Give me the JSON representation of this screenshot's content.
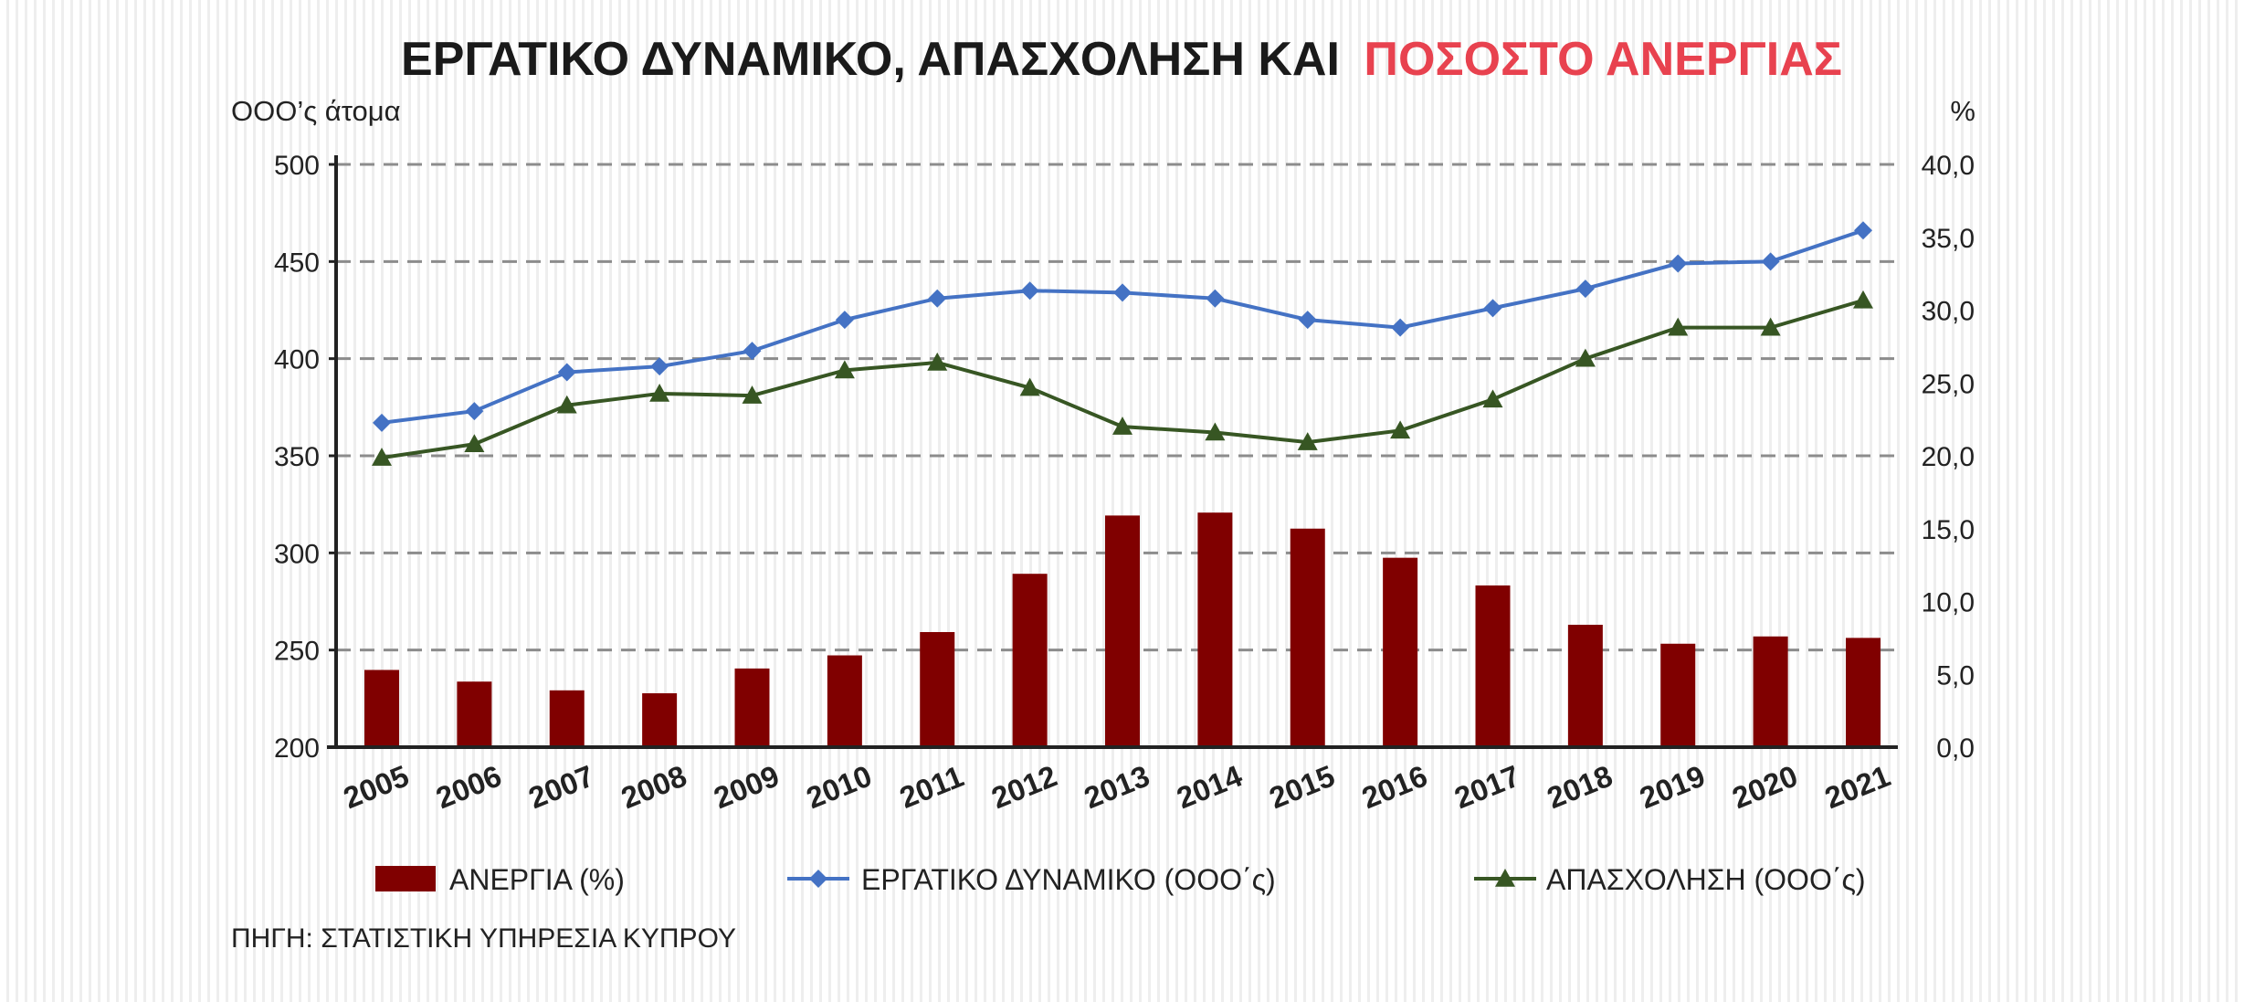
{
  "title": {
    "part1": "ΕΡΓΑΤΙΚΟ ΔΥΝΑΜΙΚΟ, ΑΠΑΣΧΟΛΗΣΗ ΚΑΙ",
    "part2": "ΠΟΣΟΣΤΟ ΑΝΕΡΓΙΑΣ",
    "part1_color": "#1a1a1a",
    "part2_color": "#e8424f"
  },
  "left_axis_unit": "ΟΟΟ’ς άτομα",
  "right_axis_unit": "%",
  "source": "ΠΗΓΗ: ΣΤΑΤΙΣΤΙΚΗ ΥΠΗΡΕΣΙΑ ΚΥΠΡΟΥ",
  "chart_data": {
    "type": "bar",
    "categories": [
      "2005",
      "2006",
      "2007",
      "2008",
      "2009",
      "2010",
      "2011",
      "2012",
      "2013",
      "2014",
      "2015",
      "2016",
      "2017",
      "2018",
      "2019",
      "2020",
      "2021"
    ],
    "y_left": {
      "min": 200,
      "max": 500,
      "ticks": [
        "500",
        "450",
        "400",
        "350",
        "300",
        "250",
        "200"
      ]
    },
    "y_right": {
      "min": 0,
      "max": 40,
      "ticks": [
        "40,0",
        "35,0",
        "30,0",
        "25,0",
        "20,0",
        "15,0",
        "10,0",
        "5,0",
        "0,0"
      ]
    },
    "grid": true,
    "legend_position": "bottom",
    "series": [
      {
        "name": "ΑΝΕΡΓΙΑ (%)",
        "type": "bar",
        "axis": "right",
        "color": "#800000",
        "values": [
          5.3,
          4.5,
          3.9,
          3.7,
          5.4,
          6.3,
          7.9,
          11.9,
          15.9,
          16.1,
          15.0,
          13.0,
          11.1,
          8.4,
          7.1,
          7.6,
          7.5
        ]
      },
      {
        "name": "ΕΡΓΑΤΙΚΟ ΔΥΝΑΜΙΚΟ (ΟΟΟ΄ς)",
        "type": "line",
        "axis": "left",
        "marker": "diamond",
        "color": "#4472c4",
        "values": [
          367,
          373,
          393,
          396,
          404,
          420,
          431,
          435,
          434,
          431,
          420,
          416,
          426,
          436,
          449,
          450,
          466
        ]
      },
      {
        "name": "ΑΠΑΣΧΟΛΗΣΗ (ΟΟΟ΄ς)",
        "type": "line",
        "axis": "left",
        "marker": "triangle",
        "color": "#375623",
        "values": [
          349,
          356,
          376,
          382,
          381,
          394,
          398,
          385,
          365,
          362,
          357,
          363,
          379,
          400,
          416,
          416,
          430
        ]
      }
    ]
  }
}
